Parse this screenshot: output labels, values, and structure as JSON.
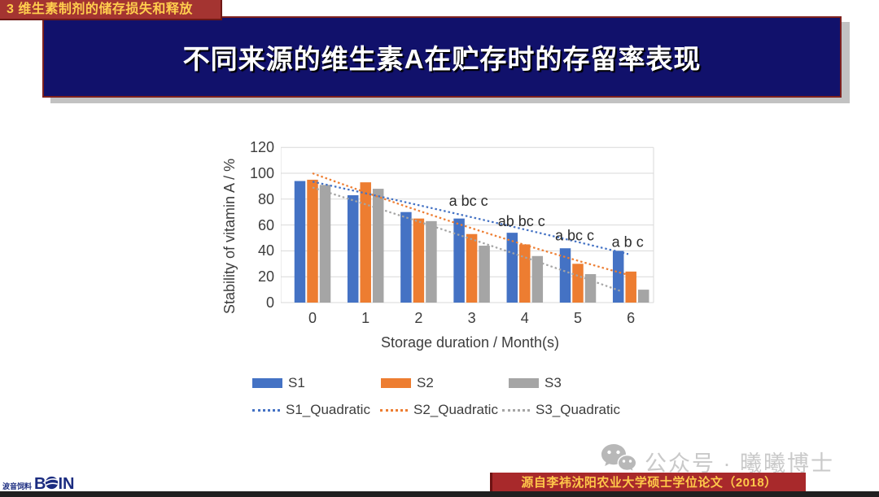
{
  "badge": {
    "label": "3 维生素制剂的储存损失和释放"
  },
  "title": {
    "label": "不同来源的维生素A在贮存时的存留率表现"
  },
  "watermark": {
    "label": "公众号 · 曦曦博士",
    "icon": "wechat-icon"
  },
  "logo": {
    "cn": "波音饲料",
    "b": "B",
    "in": "IN"
  },
  "source": {
    "label": "源自李祎沈阳农业大学硕士学位论文（2018）"
  },
  "colors": {
    "badge_bg": "#A43431",
    "badge_text": "#FFCE4E",
    "title_bg": "#11116B",
    "title_border": "#7E211E",
    "banner_bg": "#A8292B",
    "banner_text": "#FFC84A",
    "s1": "#4472C4",
    "s2": "#ED7D31",
    "s3": "#A5A5A5",
    "gridline": "#D9D9D9",
    "axis_text": "#3d3d3d",
    "watermark_text": "#C9C9C9",
    "logo_blue": "#1B2C80"
  },
  "chart_data": {
    "type": "bar",
    "title": "",
    "xlabel": "Storage duration / Month(s)",
    "ylabel": "Stability of vitamin A / %",
    "ylim": [
      0,
      120
    ],
    "ytick_step": 20,
    "grid": "horizontal",
    "legend_position": "bottom",
    "categories": [
      "0",
      "1",
      "2",
      "3",
      "4",
      "5",
      "6"
    ],
    "series": [
      {
        "name": "S1",
        "color": "#4472C4",
        "values": [
          94,
          83,
          70,
          65,
          54,
          42,
          40
        ]
      },
      {
        "name": "S2",
        "color": "#ED7D31",
        "values": [
          95,
          93,
          65,
          53,
          45,
          30,
          24
        ]
      },
      {
        "name": "S3",
        "color": "#A5A5A5",
        "values": [
          91,
          88,
          63,
          44,
          36,
          22,
          10
        ]
      }
    ],
    "trendlines": [
      {
        "name": "S1_Quadratic",
        "color": "#4472C4",
        "points": [
          [
            0,
            93.5
          ],
          [
            3,
            66
          ],
          [
            5.95,
            37.5
          ]
        ]
      },
      {
        "name": "S2_Quadratic",
        "color": "#ED7D31",
        "points": [
          [
            0,
            100
          ],
          [
            3,
            57.5
          ],
          [
            5.9,
            22
          ]
        ]
      },
      {
        "name": "S3_Quadratic",
        "color": "#A5A5A5",
        "points": [
          [
            0,
            89
          ],
          [
            3,
            49
          ],
          [
            5.8,
            9
          ]
        ]
      }
    ],
    "annotations": [
      {
        "text": "a bc c",
        "month": 3,
        "y": 75
      },
      {
        "text": "ab bc c",
        "month": 4,
        "y": 59
      },
      {
        "text": "a bc c",
        "month": 5,
        "y": 48
      },
      {
        "text": "a b c",
        "month": 6,
        "y": 43
      }
    ]
  }
}
